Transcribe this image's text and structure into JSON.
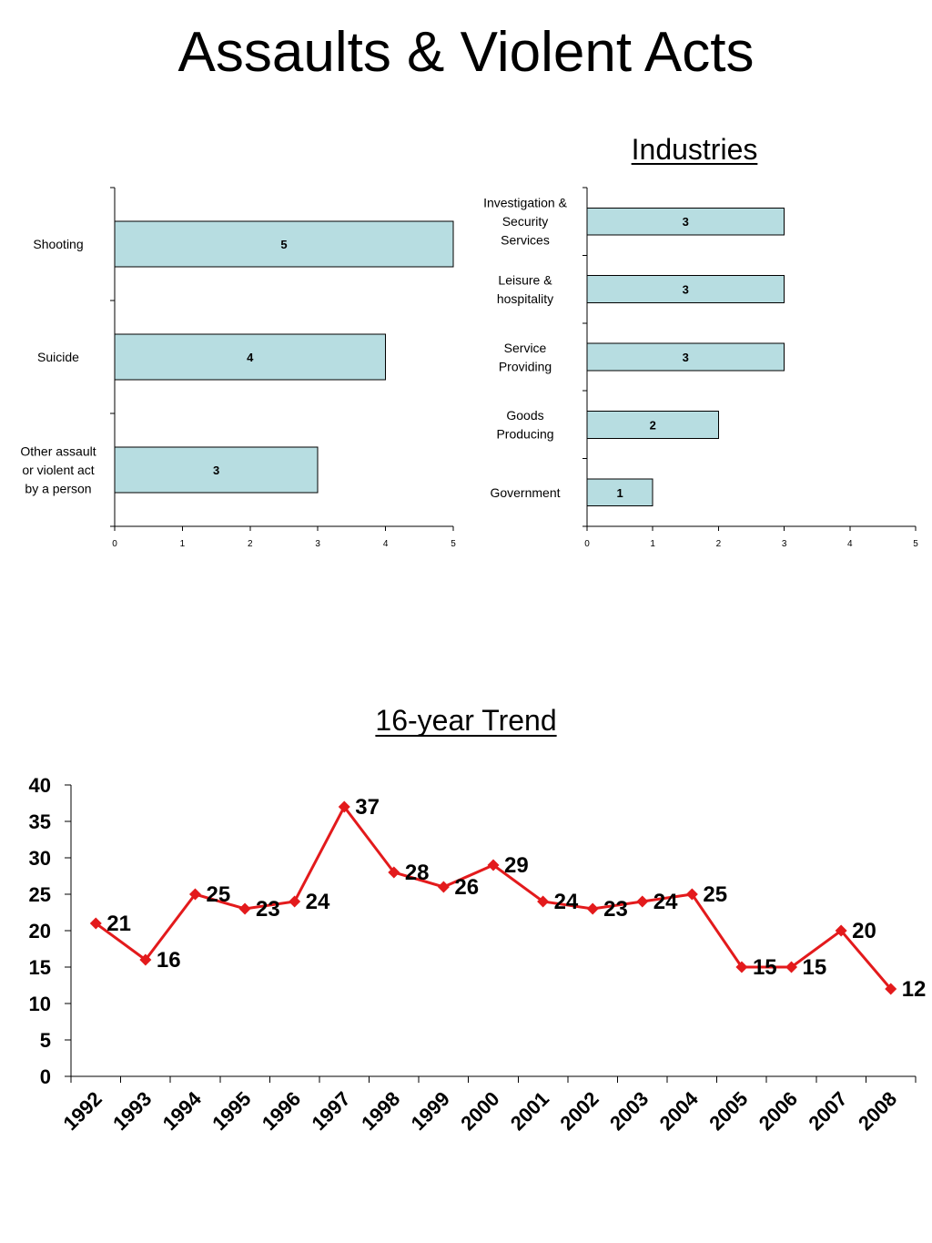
{
  "page": {
    "title": "Assaults & Violent Acts"
  },
  "chart_data": [
    {
      "type": "bar",
      "orientation": "horizontal",
      "title": "",
      "categories": [
        "Shooting",
        "Suicide",
        "Other assault or violent act by a person"
      ],
      "category_lines": [
        [
          "Shooting"
        ],
        [
          "Suicide"
        ],
        [
          "Other assault",
          "or violent act",
          "by a person"
        ]
      ],
      "values": [
        5,
        4,
        3
      ],
      "xlim": [
        0,
        5
      ],
      "xticks": [
        0,
        1,
        2,
        3,
        4,
        5
      ],
      "bar_color": "#b7dde1",
      "grid": false
    },
    {
      "type": "bar",
      "orientation": "horizontal",
      "title": "Industries",
      "categories": [
        "Investigation & Security Services",
        "Leisure & hospitality",
        "Service Providing",
        "Goods Producing",
        "Government"
      ],
      "category_lines": [
        [
          "Investigation &",
          "Security",
          "Services"
        ],
        [
          "Leisure &",
          "hospitality"
        ],
        [
          "Service",
          "Providing"
        ],
        [
          "Goods",
          "Producing"
        ],
        [
          "Government"
        ]
      ],
      "values": [
        3,
        3,
        3,
        2,
        1
      ],
      "xlim": [
        0,
        5
      ],
      "xticks": [
        0,
        1,
        2,
        3,
        4,
        5
      ],
      "bar_color": "#b7dde1",
      "grid": false
    },
    {
      "type": "line",
      "title": "16-year Trend",
      "x": [
        "1992",
        "1993",
        "1994",
        "1995",
        "1996",
        "1997",
        "1998",
        "1999",
        "2000",
        "2001",
        "2002",
        "2003",
        "2004",
        "2005",
        "2006",
        "2007",
        "2008"
      ],
      "values": [
        21,
        16,
        25,
        23,
        24,
        37,
        28,
        26,
        29,
        24,
        23,
        24,
        25,
        15,
        15,
        20,
        12
      ],
      "ylim": [
        0,
        40
      ],
      "yticks": [
        0,
        5,
        10,
        15,
        20,
        25,
        30,
        35,
        40
      ],
      "line_color": "#e31a1c",
      "marker": "diamond",
      "grid": false
    }
  ]
}
